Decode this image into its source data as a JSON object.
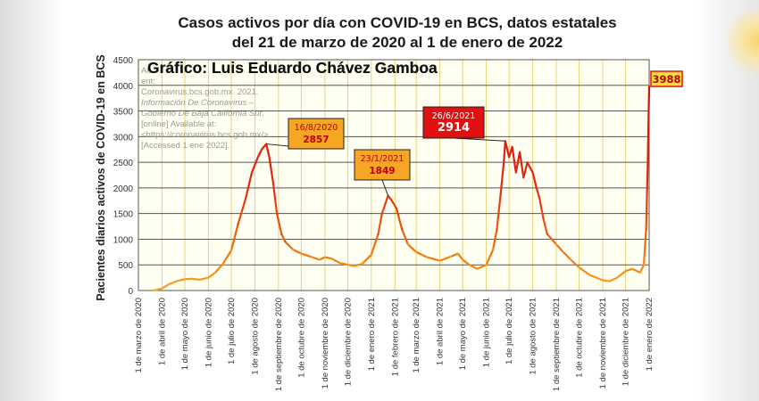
{
  "header": {
    "title_line1": "Casos activos por día con COVID-19 en BCS, datos estatales",
    "title_line2": "del 21 de marzo de 2020 al 1 de enero de 2022"
  },
  "chart_data": {
    "type": "line",
    "title": "Casos activos por día con COVID-19 en BCS, datos estatales del 21 de marzo de 2020 al 1 de enero de 2022",
    "credit": "Gráfico: Luis Eduardo Chávez Gamboa",
    "source_note": [
      "Au",
      "ent:",
      "Coronavirus.bcs.gob.mx. 2021.",
      "Información De Coronavirus –",
      "Gobierno De Baja California Sur.",
      "[online] Available at:",
      "<https://coronavirus.bcs.gob.mx/>",
      "[Accessed 1 ene 2022]."
    ],
    "ylabel": "Pacientes diarios activos de COVID-19 en BCS",
    "ylim": [
      0,
      4500
    ],
    "yticks": [
      "0",
      "500",
      "1000",
      "1500",
      "2000",
      "2500",
      "3000",
      "3500",
      "4000",
      "4500"
    ],
    "xticks": [
      "1 de marzo de 2020",
      "1 de abril de 2020",
      "1 de mayo de 2020",
      "1 de junio de 2020",
      "1 de julio de 2020",
      "1 de agosto de 2020",
      "1 de septiembre de 2020",
      "1 de octubre de 2020",
      "1 de noviembre de 2020",
      "1 de diciembre de 2020",
      "1 de enero de 2021",
      "1 de febrero de 2021",
      "1 de marzo de 2021",
      "1 de abril de 2021",
      "1 de mayo de 2021",
      "1 de junio de 2021",
      "1 de julio de 2021",
      "1 de agosto de 2021",
      "1 de septiembre de 2021",
      "1 de octubre de 2021",
      "1 de noviembre de 2021",
      "1 de diciembre de 2021",
      "1 de enero de 2022"
    ],
    "grid": true,
    "series": [
      {
        "points": [
          [
            "2020-03-21",
            0
          ],
          [
            "2020-04-01",
            40
          ],
          [
            "2020-04-10",
            120
          ],
          [
            "2020-04-20",
            180
          ],
          [
            "2020-05-01",
            220
          ],
          [
            "2020-05-10",
            230
          ],
          [
            "2020-05-20",
            210
          ],
          [
            "2020-06-01",
            250
          ],
          [
            "2020-06-10",
            350
          ],
          [
            "2020-06-20",
            520
          ],
          [
            "2020-07-01",
            780
          ],
          [
            "2020-07-10",
            1300
          ],
          [
            "2020-07-20",
            1800
          ],
          [
            "2020-07-28",
            2300
          ],
          [
            "2020-08-05",
            2600
          ],
          [
            "2020-08-10",
            2750
          ],
          [
            "2020-08-16",
            2857
          ],
          [
            "2020-08-20",
            2600
          ],
          [
            "2020-08-25",
            2100
          ],
          [
            "2020-08-30",
            1500
          ],
          [
            "2020-09-05",
            1100
          ],
          [
            "2020-09-10",
            950
          ],
          [
            "2020-09-20",
            800
          ],
          [
            "2020-10-01",
            720
          ],
          [
            "2020-10-15",
            650
          ],
          [
            "2020-10-25",
            600
          ],
          [
            "2020-11-01",
            650
          ],
          [
            "2020-11-10",
            620
          ],
          [
            "2020-11-20",
            540
          ],
          [
            "2020-12-01",
            500
          ],
          [
            "2020-12-10",
            480
          ],
          [
            "2020-12-20",
            520
          ],
          [
            "2021-01-01",
            700
          ],
          [
            "2021-01-10",
            1100
          ],
          [
            "2021-01-15",
            1500
          ],
          [
            "2021-01-23",
            1849
          ],
          [
            "2021-01-28",
            1750
          ],
          [
            "2021-02-03",
            1600
          ],
          [
            "2021-02-10",
            1200
          ],
          [
            "2021-02-18",
            900
          ],
          [
            "2021-03-01",
            750
          ],
          [
            "2021-03-15",
            650
          ],
          [
            "2021-04-01",
            580
          ],
          [
            "2021-04-15",
            660
          ],
          [
            "2021-04-25",
            720
          ],
          [
            "2021-05-01",
            600
          ],
          [
            "2021-05-10",
            500
          ],
          [
            "2021-05-20",
            420
          ],
          [
            "2021-06-01",
            500
          ],
          [
            "2021-06-10",
            800
          ],
          [
            "2021-06-15",
            1200
          ],
          [
            "2021-06-20",
            1900
          ],
          [
            "2021-06-24",
            2500
          ],
          [
            "2021-06-26",
            2914
          ],
          [
            "2021-07-01",
            2600
          ],
          [
            "2021-07-05",
            2800
          ],
          [
            "2021-07-10",
            2300
          ],
          [
            "2021-07-15",
            2700
          ],
          [
            "2021-07-20",
            2200
          ],
          [
            "2021-07-25",
            2500
          ],
          [
            "2021-08-01",
            2300
          ],
          [
            "2021-08-06",
            2000
          ],
          [
            "2021-08-10",
            1800
          ],
          [
            "2021-08-15",
            1400
          ],
          [
            "2021-08-20",
            1100
          ],
          [
            "2021-09-01",
            900
          ],
          [
            "2021-09-10",
            750
          ],
          [
            "2021-09-20",
            600
          ],
          [
            "2021-10-01",
            450
          ],
          [
            "2021-10-15",
            300
          ],
          [
            "2021-11-01",
            200
          ],
          [
            "2021-11-10",
            180
          ],
          [
            "2021-11-20",
            250
          ],
          [
            "2021-12-01",
            380
          ],
          [
            "2021-12-10",
            420
          ],
          [
            "2021-12-20",
            350
          ],
          [
            "2021-12-25",
            500
          ],
          [
            "2021-12-28",
            1200
          ],
          [
            "2021-12-30",
            2400
          ],
          [
            "2022-01-01",
            3988
          ]
        ]
      }
    ],
    "annotations": [
      {
        "date_label": "16/8/2020",
        "value_label": "2857",
        "date": "2020-08-16",
        "value": 2857,
        "fill": "#f5a623",
        "border": "#1f1f1f",
        "text_color": "#c00000"
      },
      {
        "date_label": "23/1/2021",
        "value_label": "1849",
        "date": "2021-01-23",
        "value": 1849,
        "fill": "#f5a623",
        "border": "#1f1f1f",
        "text_color": "#c00000"
      },
      {
        "date_label": "26/6/2021",
        "value_label": "2914",
        "date": "2021-06-26",
        "value": 2914,
        "fill": "#e01010",
        "border": "#1f1f1f",
        "text_color": "#ffffff"
      },
      {
        "date_label": "",
        "value_label": "3988",
        "date": "2022-01-01",
        "value": 3988,
        "fill": "#f5e03a",
        "border": "#e01010",
        "text_color": "#c00000"
      }
    ],
    "colors": {
      "plot_bg": "#fffff2",
      "grid": "#555555",
      "xgrid": "#e9d27a",
      "line_high": "#e52b0f",
      "line_mid": "#f0700c",
      "line_low": "#f5a623"
    }
  }
}
